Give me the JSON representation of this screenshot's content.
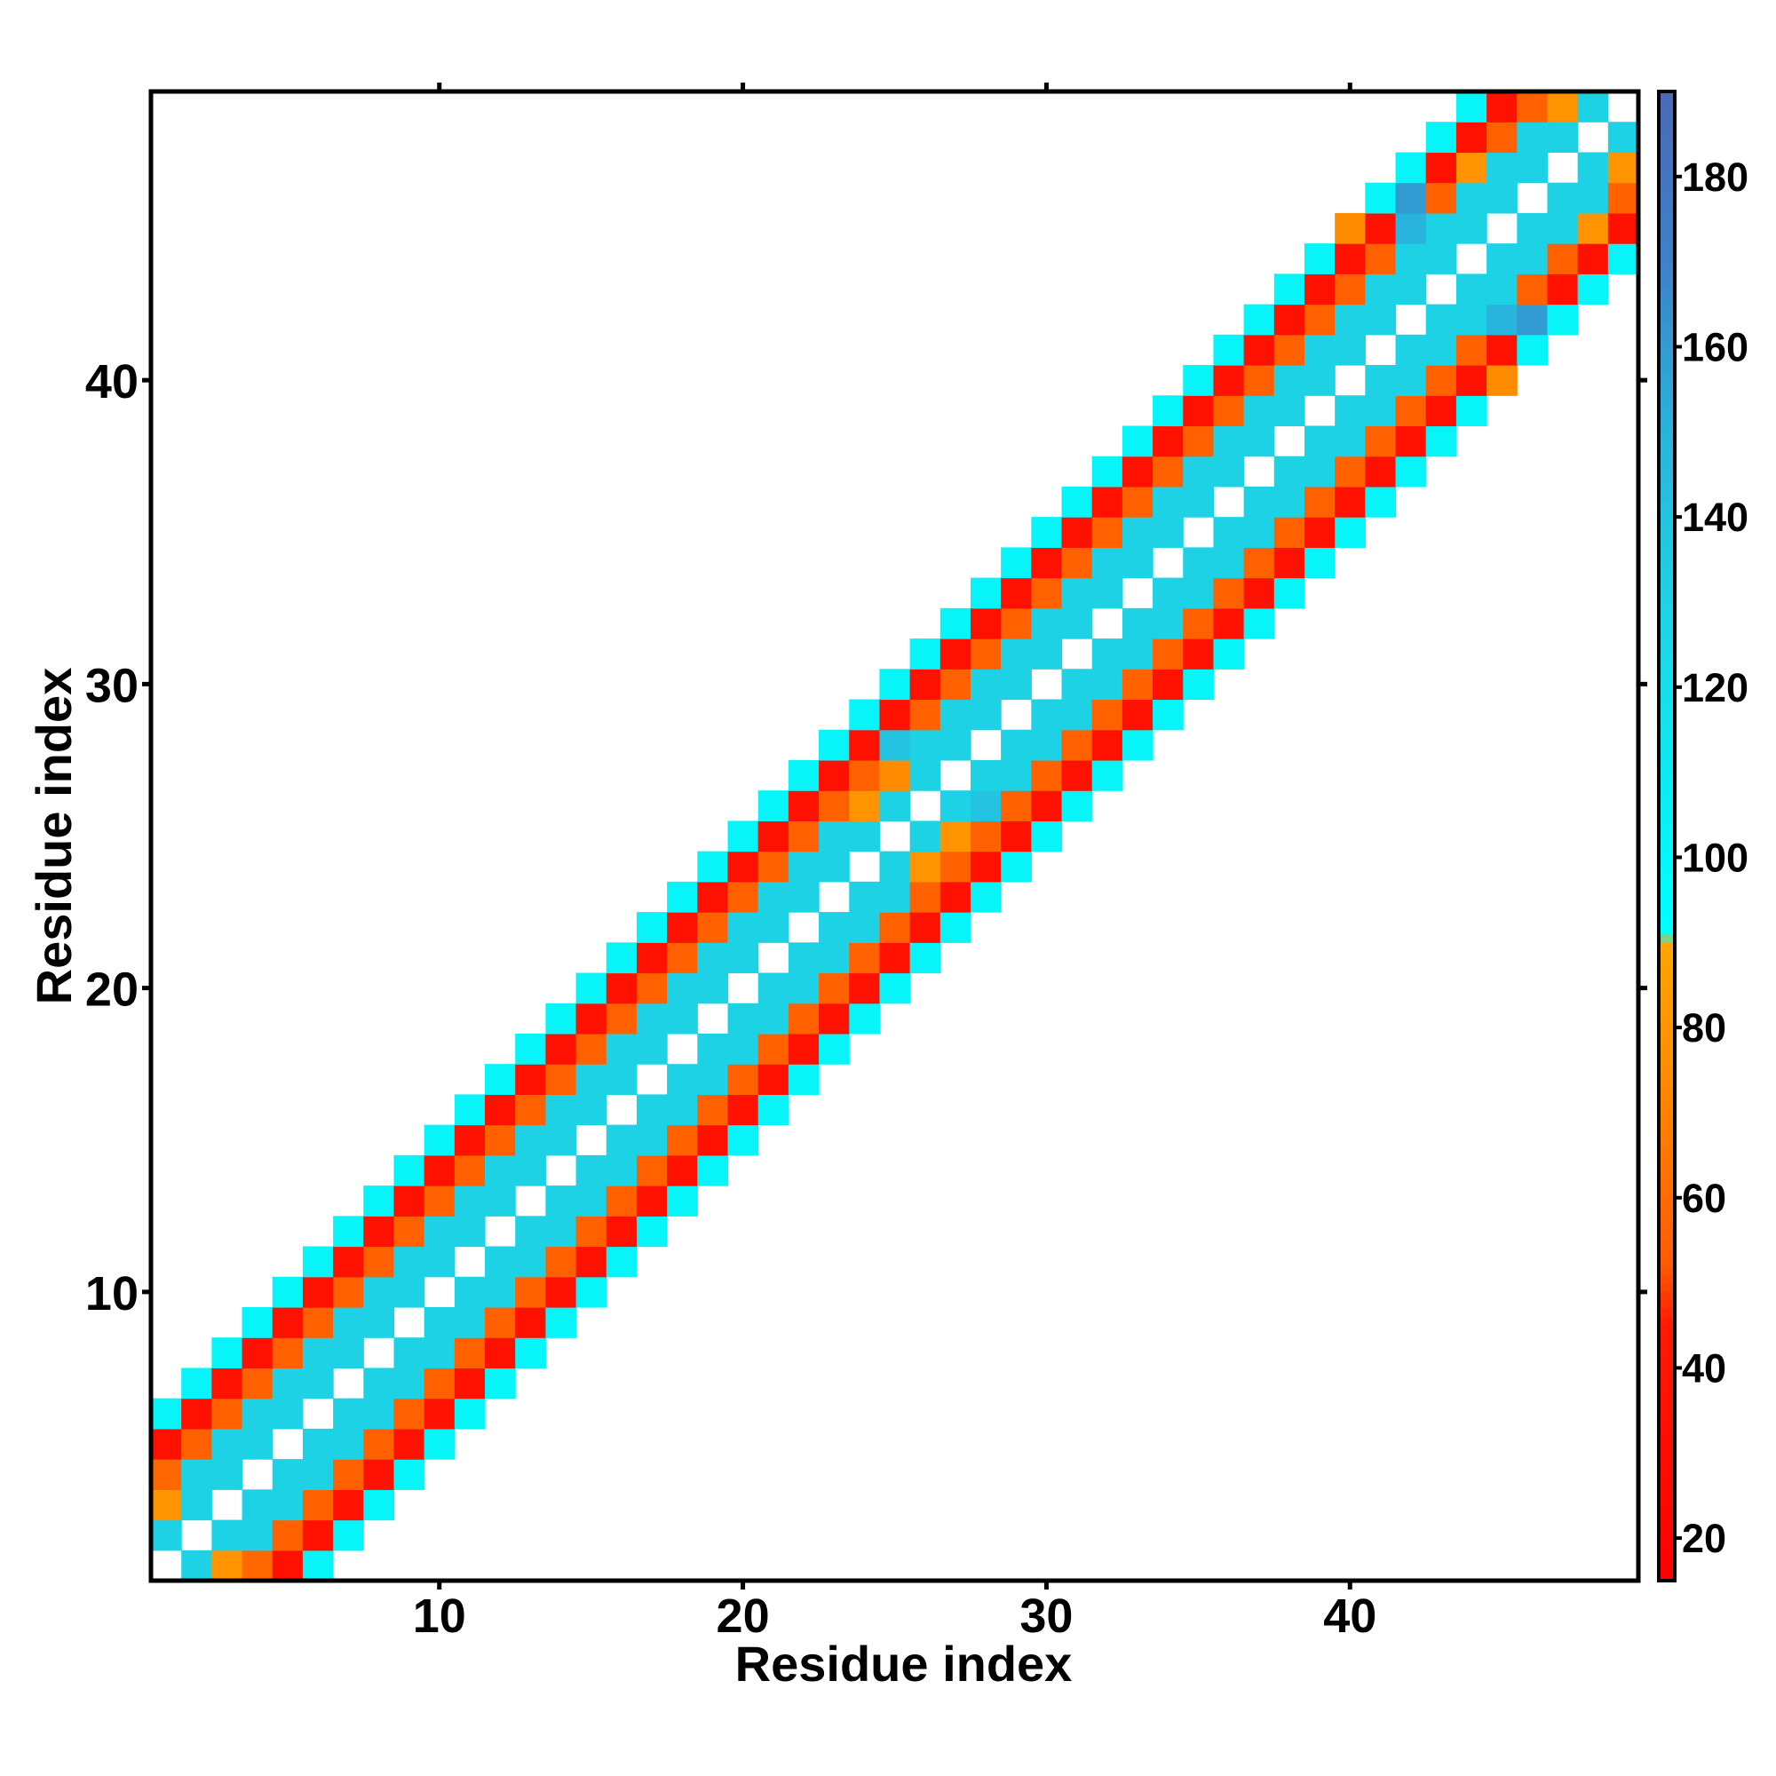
{
  "chart_data": {
    "type": "heatmap",
    "xlabel": "Residue index",
    "ylabel": "Residue index",
    "x_range": [
      0.5,
      49.5
    ],
    "y_range": [
      0.5,
      49.5
    ],
    "x_ticks": [
      10,
      20,
      30,
      40
    ],
    "y_ticks": [
      10,
      20,
      30,
      40
    ],
    "colorbar": {
      "range": [
        15,
        190
      ],
      "ticks": [
        20,
        40,
        60,
        80,
        100,
        120,
        140,
        160,
        180
      ],
      "stops": [
        {
          "value": 15,
          "color": "#ff0000"
        },
        {
          "value": 45,
          "color": "#ff1a00"
        },
        {
          "value": 52,
          "color": "#ff5a00"
        },
        {
          "value": 75,
          "color": "#ff8c00"
        },
        {
          "value": 90,
          "color": "#ffa500"
        },
        {
          "value": 91,
          "color": "#00ffff"
        },
        {
          "value": 130,
          "color": "#1ed2e6"
        },
        {
          "value": 150,
          "color": "#28b4dc"
        },
        {
          "value": 170,
          "color": "#3c82c8"
        },
        {
          "value": 190,
          "color": "#4a6ab8"
        }
      ]
    },
    "band": {
      "offsets": [
        -5,
        -4,
        -3,
        -2,
        -1,
        1,
        2,
        3,
        4,
        5
      ],
      "values": [
        100,
        35,
        55,
        130,
        130,
        130,
        130,
        55,
        35,
        100
      ]
    },
    "overrides": [
      {
        "x": 1,
        "y": 2,
        "value": 130
      },
      {
        "x": 1,
        "y": 3,
        "value": 80
      },
      {
        "x": 1,
        "y": 4,
        "value": 58
      },
      {
        "x": 2,
        "y": 1,
        "value": 130
      },
      {
        "x": 2,
        "y": 3,
        "value": 130
      },
      {
        "x": 2,
        "y": 4,
        "value": 130
      },
      {
        "x": 3,
        "y": 1,
        "value": 80
      },
      {
        "x": 3,
        "y": 2,
        "value": 130
      },
      {
        "x": 4,
        "y": 1,
        "value": 58
      },
      {
        "x": 4,
        "y": 2,
        "value": 130
      },
      {
        "x": 24,
        "y": 26,
        "value": 80
      },
      {
        "x": 25,
        "y": 27,
        "value": 75
      },
      {
        "x": 26,
        "y": 24,
        "value": 80
      },
      {
        "x": 27,
        "y": 25,
        "value": 80
      },
      {
        "x": 28,
        "y": 26,
        "value": 140
      },
      {
        "x": 25,
        "y": 28,
        "value": 140
      },
      {
        "x": 42,
        "y": 46,
        "value": 160
      },
      {
        "x": 42,
        "y": 45,
        "value": 150
      },
      {
        "x": 46,
        "y": 42,
        "value": 160
      },
      {
        "x": 45,
        "y": 42,
        "value": 150
      },
      {
        "x": 40,
        "y": 45,
        "value": 75
      },
      {
        "x": 44,
        "y": 47,
        "value": 80
      },
      {
        "x": 45,
        "y": 40,
        "value": 75
      },
      {
        "x": 47,
        "y": 49,
        "value": 80
      },
      {
        "x": 49,
        "y": 47,
        "value": 80
      },
      {
        "x": 48,
        "y": 45,
        "value": 80
      }
    ]
  }
}
